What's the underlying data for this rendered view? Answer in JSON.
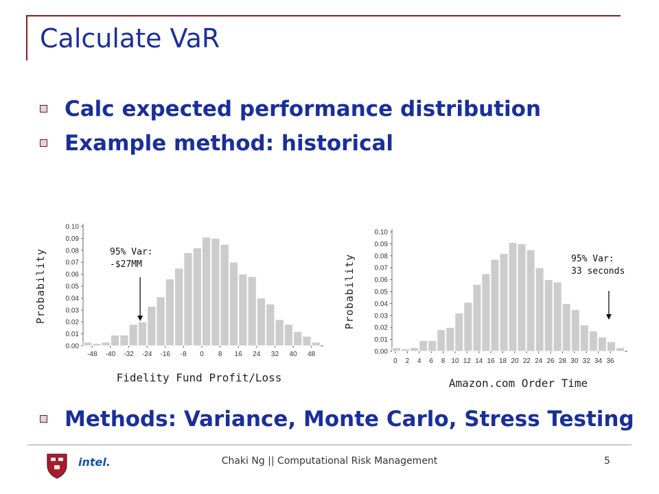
{
  "slide": {
    "title": "Calculate VaR",
    "bullets": [
      "Calc expected performance distribution",
      "Example method: historical"
    ],
    "bottom_bullet": "Methods: Variance, Monte Carlo, Stress Testing"
  },
  "footer": {
    "text": "Chaki Ng || Computational Risk Management",
    "page_number": "5",
    "intel_logo_text": "intel."
  },
  "chart_data": [
    {
      "type": "bar",
      "title": "",
      "xlabel": "Fidelity Fund Profit/Loss",
      "ylabel": "Probability",
      "ylim": [
        0,
        0.1
      ],
      "y_ticks": [
        "0.00",
        "0.01",
        "0.02",
        "0.03",
        "0.04",
        "0.05",
        "0.06",
        "0.07",
        "0.08",
        "0.09",
        "0.10"
      ],
      "x_ticks": [
        "-48",
        "-40",
        "-32",
        "-24",
        "-16",
        "-8",
        "0",
        "8",
        "16",
        "24",
        "32",
        "40",
        "48"
      ],
      "x_start": -52,
      "x_step": 4,
      "values": [
        0.003,
        0.002,
        0.003,
        0.009,
        0.009,
        0.018,
        0.02,
        0.033,
        0.041,
        0.056,
        0.065,
        0.078,
        0.082,
        0.091,
        0.09,
        0.085,
        0.07,
        0.06,
        0.058,
        0.04,
        0.035,
        0.022,
        0.018,
        0.012,
        0.008,
        0.003
      ],
      "bar_color": "#cccccc",
      "annotation": {
        "line1": "95% Var:",
        "line2": "-$27MM",
        "x": -27
      }
    },
    {
      "type": "bar",
      "title": "",
      "xlabel": "Amazon.com Order Time",
      "ylabel": "Probability",
      "ylim": [
        0,
        0.1
      ],
      "y_ticks": [
        "0.00",
        "0.01",
        "0.02",
        "0.03",
        "0.04",
        "0.05",
        "0.06",
        "0.07",
        "0.08",
        "0.09",
        "0.10"
      ],
      "x_ticks": [
        "0",
        "2",
        "4",
        "6",
        "8",
        "10",
        "12",
        "14",
        "16",
        "18",
        "20",
        "22",
        "24",
        "26",
        "28",
        "30",
        "32",
        "34",
        "36"
      ],
      "x_start": 0,
      "x_step": 1.5,
      "values": [
        0.003,
        0.002,
        0.003,
        0.009,
        0.009,
        0.018,
        0.02,
        0.032,
        0.041,
        0.056,
        0.065,
        0.077,
        0.082,
        0.091,
        0.09,
        0.085,
        0.07,
        0.06,
        0.058,
        0.04,
        0.035,
        0.022,
        0.017,
        0.012,
        0.008,
        0.003
      ],
      "bar_color": "#cccccc",
      "annotation": {
        "line1": "95% Var:",
        "line2": "33 seconds",
        "x": 33
      }
    }
  ]
}
